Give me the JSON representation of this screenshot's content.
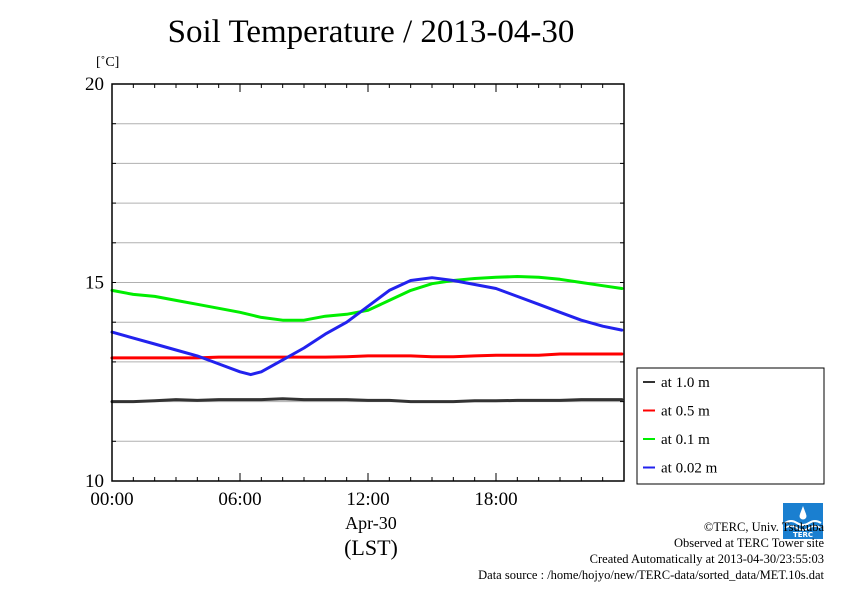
{
  "chart_data": {
    "type": "line",
    "title": "Soil Temperature / 2013-04-30",
    "ylabel": "[˚C]",
    "xlabel_date": "Apr-30",
    "xlabel_tz": "(LST)",
    "ylim": [
      10,
      20
    ],
    "xlim": [
      0,
      24
    ],
    "y_ticks": [
      "20",
      "15",
      "10"
    ],
    "y_tick_values": [
      20,
      15,
      10
    ],
    "x_ticks": [
      "00:00",
      "06:00",
      "12:00",
      "18:00"
    ],
    "x_tick_values": [
      0,
      6,
      12,
      18
    ],
    "grid": true,
    "legend_position": "right",
    "series": [
      {
        "name": "at 1.0 m",
        "color": "#333333",
        "x": [
          0,
          1,
          2,
          3,
          4,
          5,
          6,
          7,
          8,
          9,
          10,
          11,
          12,
          13,
          14,
          15,
          16,
          17,
          18,
          19,
          20,
          21,
          22,
          23,
          23.9
        ],
        "y": [
          12.0,
          12.0,
          12.02,
          12.05,
          12.03,
          12.05,
          12.05,
          12.05,
          12.07,
          12.05,
          12.05,
          12.05,
          12.03,
          12.03,
          12.0,
          12.0,
          12.0,
          12.02,
          12.02,
          12.03,
          12.03,
          12.03,
          12.05,
          12.05,
          12.05
        ]
      },
      {
        "name": "at 0.5 m",
        "color": "#ff0000",
        "x": [
          0,
          1,
          2,
          3,
          4,
          5,
          6,
          7,
          8,
          9,
          10,
          11,
          12,
          13,
          14,
          15,
          16,
          17,
          18,
          19,
          20,
          21,
          22,
          23,
          23.9
        ],
        "y": [
          13.1,
          13.1,
          13.1,
          13.1,
          13.1,
          13.12,
          13.12,
          13.12,
          13.12,
          13.12,
          13.12,
          13.13,
          13.15,
          13.15,
          13.15,
          13.13,
          13.13,
          13.15,
          13.17,
          13.17,
          13.17,
          13.2,
          13.2,
          13.2,
          13.2
        ]
      },
      {
        "name": "at 0.1 m",
        "color": "#00ee00",
        "x": [
          0,
          1,
          2,
          3,
          4,
          5,
          6,
          7,
          8,
          9,
          10,
          11,
          12,
          13,
          14,
          15,
          16,
          17,
          18,
          19,
          20,
          21,
          22,
          23,
          23.9
        ],
        "y": [
          14.8,
          14.7,
          14.65,
          14.55,
          14.45,
          14.35,
          14.25,
          14.12,
          14.05,
          14.05,
          14.15,
          14.2,
          14.3,
          14.55,
          14.8,
          14.97,
          15.05,
          15.1,
          15.13,
          15.15,
          15.13,
          15.08,
          15.0,
          14.92,
          14.85
        ]
      },
      {
        "name": "at 0.02 m",
        "color": "#2222ee",
        "x": [
          0,
          1,
          2,
          3,
          4,
          5,
          6,
          6.5,
          7,
          8,
          9,
          10,
          11,
          12,
          13,
          14,
          15,
          16,
          17,
          18,
          19,
          20,
          21,
          22,
          23,
          23.9
        ],
        "y": [
          13.75,
          13.6,
          13.45,
          13.3,
          13.15,
          12.95,
          12.75,
          12.68,
          12.75,
          13.05,
          13.35,
          13.7,
          14.0,
          14.4,
          14.8,
          15.05,
          15.12,
          15.05,
          14.95,
          14.85,
          14.65,
          14.45,
          14.25,
          14.05,
          13.9,
          13.8
        ]
      }
    ]
  },
  "credits": {
    "line1": "©TERC, Univ. Tsukuba",
    "line2": "Observed at TERC Tower site",
    "line3": "Created Automatically at 2013-04-30/23:55:03",
    "line4": "Data source : /home/hojyo/new/TERC-data/sorted_data/MET.10s.dat"
  },
  "logo": {
    "text": "TERC",
    "icon": "terc-logo-icon",
    "color": "#1a7fd0"
  }
}
